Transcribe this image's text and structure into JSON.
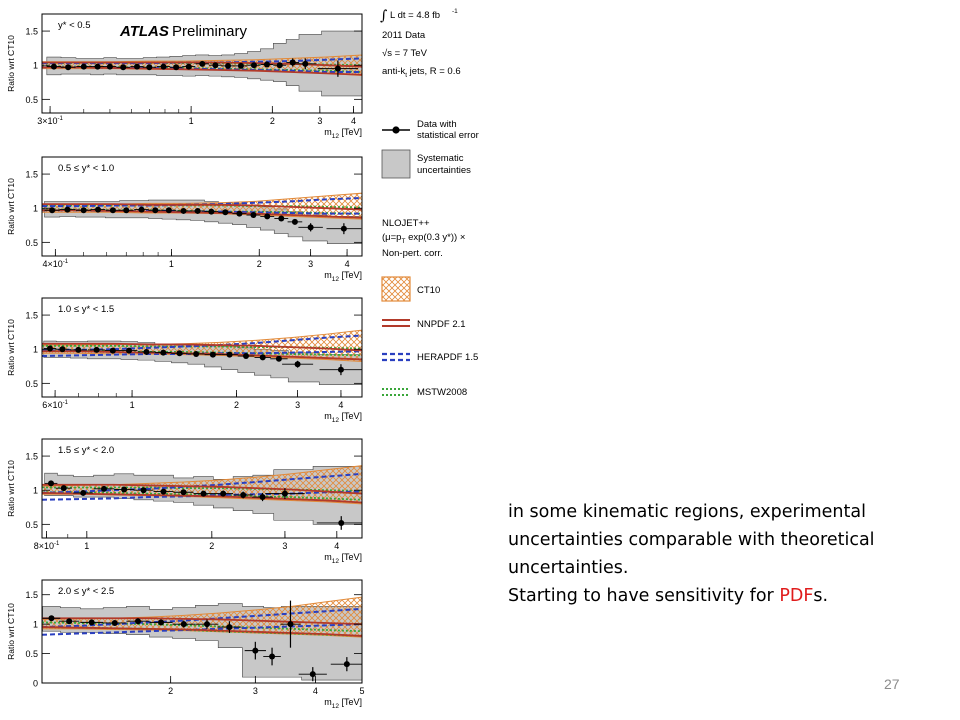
{
  "figure": {
    "watermark_text": "ATLAS",
    "watermark_sub": "Preliminary",
    "ylabel": "Ratio wrt CT10",
    "xlabel_main": "m",
    "xlabel_sub": "12",
    "xlabel_unit": "[TeV]"
  },
  "legend": {
    "lumi_int": "∫",
    "lumi_text": "L dt = 4.8 fb",
    "lumi_sup": "-1",
    "data_year": "2011 Data",
    "sqrt_s": "√s = 7 TeV",
    "jet_algo": "anti-k",
    "jet_algo_sub": "t",
    "jet_algo_rest": " jets, R = 0.6",
    "data_label_1": "Data with",
    "data_label_2": "statistical error",
    "syst_label_1": "Systematic",
    "syst_label_2": "uncertainties",
    "theory_1": "NLOJET++",
    "theory_2": "(μ=p",
    "theory_2_sub": "T",
    "theory_2_rest": " exp(0.3 y*)) ×",
    "theory_3": "Non-pert. corr.",
    "ct10": "CT10",
    "nnpdf": "NNPDF 2.1",
    "herapdf": "HERAPDF 1.5",
    "mstw": "MSTW2008",
    "colors": {
      "ct10": "#e28a3a",
      "nnpdf": "#b23a2a",
      "herapdf": "#2a3fc0",
      "mstw": "#3aa63a",
      "syst": "#c8c8c8"
    }
  },
  "slide": {
    "line1": "in some kinematic regions, experimental",
    "line2": "uncertainties comparable with theoretical",
    "line3": "uncertainties.",
    "line4_pre": "Starting to have sensitivity for ",
    "line4_hl": "PDF",
    "line4_post": "s.",
    "page_number": "27"
  },
  "chart_data": [
    {
      "type": "line",
      "range_label": "y* < 0.5",
      "xscale": "log",
      "xlim": [
        0.28,
        4.3
      ],
      "ylim": [
        0.3,
        1.75
      ],
      "yticks": [
        0.5,
        1,
        1.5
      ],
      "xticks": [
        {
          "v": 0.3,
          "label": "3×10",
          "sup": "-1"
        },
        {
          "v": 1,
          "label": "1"
        },
        {
          "v": 2,
          "label": "2"
        },
        {
          "v": 3,
          "label": "3"
        },
        {
          "v": 4,
          "label": "4"
        }
      ],
      "data_x": [
        0.31,
        0.35,
        0.4,
        0.45,
        0.5,
        0.56,
        0.63,
        0.7,
        0.79,
        0.88,
        0.98,
        1.1,
        1.23,
        1.37,
        1.53,
        1.71,
        1.91,
        2.13,
        2.38,
        2.65,
        3.5
      ],
      "data_y": [
        0.98,
        0.97,
        0.98,
        0.98,
        0.98,
        0.97,
        0.98,
        0.97,
        0.98,
        0.97,
        0.98,
        1.02,
        1.0,
        0.99,
        0.99,
        1.0,
        1.01,
        1.0,
        1.04,
        1.02,
        0.95
      ],
      "data_err": [
        0.02,
        0.02,
        0.02,
        0.02,
        0.02,
        0.02,
        0.02,
        0.02,
        0.02,
        0.02,
        0.02,
        0.02,
        0.02,
        0.02,
        0.02,
        0.02,
        0.03,
        0.04,
        0.06,
        0.08,
        0.12
      ],
      "syst_lo": [
        0.86,
        0.87,
        0.87,
        0.86,
        0.87,
        0.86,
        0.86,
        0.86,
        0.85,
        0.85,
        0.84,
        0.85,
        0.84,
        0.83,
        0.82,
        0.8,
        0.78,
        0.76,
        0.7,
        0.62,
        0.55
      ],
      "syst_hi": [
        1.12,
        1.11,
        1.1,
        1.1,
        1.11,
        1.1,
        1.1,
        1.11,
        1.12,
        1.13,
        1.14,
        1.15,
        1.14,
        1.15,
        1.17,
        1.2,
        1.24,
        1.32,
        1.38,
        1.45,
        1.5
      ],
      "ct10_lo": [
        0.95,
        0.95,
        0.95,
        0.94,
        0.94,
        0.93,
        0.92,
        0.9,
        0.88,
        0.85
      ],
      "ct10_hi": [
        1.05,
        1.05,
        1.05,
        1.06,
        1.06,
        1.07,
        1.08,
        1.1,
        1.12,
        1.15
      ],
      "nnpdf_lo": [
        0.97,
        0.97,
        0.96,
        0.95,
        0.94,
        0.93,
        0.92,
        0.9,
        0.88,
        0.86
      ],
      "nnpdf_hi": [
        1.04,
        1.04,
        1.04,
        1.04,
        1.04,
        1.04,
        1.03,
        1.02,
        1.0,
        0.98
      ],
      "hera_lo": [
        0.97,
        0.97,
        0.96,
        0.96,
        0.95,
        0.94,
        0.93,
        0.92,
        0.9,
        0.9
      ],
      "hera_hi": [
        1.03,
        1.03,
        1.03,
        1.03,
        1.04,
        1.04,
        1.05,
        1.06,
        1.08,
        1.1
      ],
      "mstw_lo": [
        0.98,
        0.98,
        0.97,
        0.97,
        0.96,
        0.95,
        0.94,
        0.93,
        0.92,
        0.9
      ],
      "mstw_hi": [
        1.03,
        1.03,
        1.03,
        1.03,
        1.03,
        1.03,
        1.02,
        1.02,
        1.01,
        1.0
      ]
    },
    {
      "type": "line",
      "range_label": "0.5 ≤ y* < 1.0",
      "xscale": "log",
      "xlim": [
        0.36,
        4.5
      ],
      "ylim": [
        0.3,
        1.75
      ],
      "yticks": [
        0.5,
        1,
        1.5
      ],
      "xticks": [
        {
          "v": 0.4,
          "label": "4×10",
          "sup": "-1"
        },
        {
          "v": 1,
          "label": "1"
        },
        {
          "v": 2,
          "label": "2"
        },
        {
          "v": 3,
          "label": "3"
        },
        {
          "v": 4,
          "label": "4"
        }
      ],
      "data_x": [
        0.39,
        0.44,
        0.5,
        0.56,
        0.63,
        0.7,
        0.79,
        0.88,
        0.98,
        1.1,
        1.23,
        1.37,
        1.53,
        1.71,
        1.91,
        2.13,
        2.38,
        2.65,
        3.0,
        3.9
      ],
      "data_y": [
        0.97,
        0.98,
        0.97,
        0.98,
        0.97,
        0.97,
        0.98,
        0.97,
        0.97,
        0.96,
        0.96,
        0.95,
        0.94,
        0.92,
        0.9,
        0.88,
        0.85,
        0.8,
        0.72,
        0.7
      ],
      "data_err": [
        0.02,
        0.02,
        0.02,
        0.02,
        0.02,
        0.02,
        0.02,
        0.02,
        0.02,
        0.02,
        0.02,
        0.02,
        0.02,
        0.02,
        0.02,
        0.03,
        0.03,
        0.04,
        0.06,
        0.08
      ],
      "syst_lo": [
        0.87,
        0.88,
        0.87,
        0.87,
        0.86,
        0.86,
        0.86,
        0.85,
        0.84,
        0.83,
        0.82,
        0.8,
        0.78,
        0.76,
        0.72,
        0.68,
        0.63,
        0.58,
        0.52,
        0.48
      ],
      "syst_hi": [
        1.1,
        1.1,
        1.1,
        1.1,
        1.1,
        1.11,
        1.11,
        1.12,
        1.12,
        1.12,
        1.12,
        1.1,
        1.08,
        1.07,
        1.05,
        1.02,
        0.99,
        0.95,
        0.9,
        0.88
      ],
      "ct10_lo": [
        0.94,
        0.94,
        0.94,
        0.93,
        0.93,
        0.92,
        0.9,
        0.88,
        0.86,
        0.84
      ],
      "ct10_hi": [
        1.06,
        1.06,
        1.06,
        1.07,
        1.07,
        1.08,
        1.1,
        1.14,
        1.18,
        1.22
      ],
      "nnpdf_lo": [
        0.97,
        0.97,
        0.96,
        0.95,
        0.94,
        0.93,
        0.92,
        0.9,
        0.88,
        0.86
      ],
      "nnpdf_hi": [
        1.06,
        1.06,
        1.06,
        1.05,
        1.05,
        1.05,
        1.04,
        1.02,
        1.0,
        0.98
      ],
      "hera_lo": [
        0.97,
        0.97,
        0.96,
        0.96,
        0.95,
        0.95,
        0.94,
        0.93,
        0.92,
        0.92
      ],
      "hera_hi": [
        1.03,
        1.03,
        1.04,
        1.04,
        1.05,
        1.06,
        1.08,
        1.1,
        1.13,
        1.15
      ],
      "mstw_lo": [
        0.98,
        0.98,
        0.97,
        0.97,
        0.96,
        0.95,
        0.95,
        0.94,
        0.93,
        0.92
      ],
      "mstw_hi": [
        1.04,
        1.04,
        1.04,
        1.04,
        1.04,
        1.04,
        1.03,
        1.03,
        1.02,
        1.01
      ]
    },
    {
      "type": "line",
      "range_label": "1.0 ≤ y* < 1.5",
      "xscale": "log",
      "xlim": [
        0.55,
        4.6
      ],
      "ylim": [
        0.3,
        1.75
      ],
      "yticks": [
        0.5,
        1,
        1.5
      ],
      "xticks": [
        {
          "v": 0.6,
          "label": "6×10",
          "sup": "-1"
        },
        {
          "v": 1,
          "label": "1"
        },
        {
          "v": 2,
          "label": "2"
        },
        {
          "v": 3,
          "label": "3"
        },
        {
          "v": 4,
          "label": "4"
        }
      ],
      "data_x": [
        0.58,
        0.63,
        0.7,
        0.79,
        0.88,
        0.98,
        1.1,
        1.23,
        1.37,
        1.53,
        1.71,
        1.91,
        2.13,
        2.38,
        2.65,
        3.0,
        4.0
      ],
      "data_y": [
        1.01,
        1.0,
        0.99,
        0.99,
        0.98,
        0.98,
        0.96,
        0.95,
        0.94,
        0.93,
        0.92,
        0.92,
        0.9,
        0.88,
        0.86,
        0.78,
        0.7
      ],
      "data_err": [
        0.02,
        0.02,
        0.02,
        0.02,
        0.02,
        0.02,
        0.02,
        0.02,
        0.02,
        0.02,
        0.02,
        0.02,
        0.02,
        0.03,
        0.04,
        0.05,
        0.08
      ],
      "syst_lo": [
        0.88,
        0.88,
        0.87,
        0.86,
        0.86,
        0.85,
        0.84,
        0.82,
        0.8,
        0.78,
        0.74,
        0.7,
        0.66,
        0.62,
        0.58,
        0.52,
        0.48
      ],
      "syst_hi": [
        1.12,
        1.11,
        1.11,
        1.12,
        1.12,
        1.11,
        1.1,
        1.08,
        1.08,
        1.06,
        1.05,
        1.04,
        1.02,
        1.0,
        0.98,
        0.95,
        0.92
      ],
      "ct10_lo": [
        0.94,
        0.94,
        0.93,
        0.93,
        0.92,
        0.91,
        0.89,
        0.87,
        0.85,
        0.82
      ],
      "ct10_hi": [
        1.06,
        1.06,
        1.07,
        1.07,
        1.08,
        1.1,
        1.13,
        1.17,
        1.22,
        1.28
      ],
      "nnpdf_lo": [
        0.97,
        0.97,
        0.96,
        0.95,
        0.94,
        0.93,
        0.91,
        0.89,
        0.87,
        0.85
      ],
      "nnpdf_hi": [
        1.08,
        1.08,
        1.08,
        1.07,
        1.07,
        1.06,
        1.05,
        1.03,
        1.01,
        0.98
      ],
      "hera_lo": [
        0.9,
        0.91,
        0.92,
        0.93,
        0.93,
        0.94,
        0.94,
        0.95,
        0.96,
        0.97
      ],
      "hera_hi": [
        0.98,
        0.99,
        1.0,
        1.02,
        1.04,
        1.06,
        1.09,
        1.13,
        1.17,
        1.2
      ],
      "mstw_lo": [
        0.98,
        0.98,
        0.97,
        0.96,
        0.96,
        0.95,
        0.94,
        0.93,
        0.92,
        0.91
      ],
      "mstw_hi": [
        1.05,
        1.05,
        1.05,
        1.04,
        1.04,
        1.04,
        1.03,
        1.03,
        1.02,
        1.01
      ]
    },
    {
      "type": "line",
      "range_label": "1.5 ≤ y* < 2.0",
      "xscale": "log",
      "xlim": [
        0.78,
        4.6
      ],
      "ylim": [
        0.3,
        1.75
      ],
      "yticks": [
        0.5,
        1,
        1.5
      ],
      "xticks": [
        {
          "v": 0.8,
          "label": "8×10",
          "sup": "-1"
        },
        {
          "v": 1,
          "label": "1"
        },
        {
          "v": 2,
          "label": "2"
        },
        {
          "v": 3,
          "label": "3"
        },
        {
          "v": 4,
          "label": "4"
        }
      ],
      "data_x": [
        0.82,
        0.88,
        0.98,
        1.1,
        1.23,
        1.37,
        1.53,
        1.71,
        1.91,
        2.13,
        2.38,
        2.65,
        3.0,
        4.1
      ],
      "data_y": [
        1.1,
        1.03,
        0.96,
        1.02,
        1.01,
        1.0,
        0.98,
        0.97,
        0.95,
        0.95,
        0.93,
        0.9,
        0.95,
        0.52
      ],
      "data_err": [
        0.03,
        0.03,
        0.03,
        0.03,
        0.03,
        0.03,
        0.03,
        0.03,
        0.03,
        0.04,
        0.05,
        0.06,
        0.08,
        0.1
      ],
      "syst_lo": [
        0.92,
        0.92,
        0.9,
        0.9,
        0.88,
        0.86,
        0.84,
        0.82,
        0.78,
        0.74,
        0.7,
        0.66,
        0.56,
        0.5
      ],
      "syst_hi": [
        1.25,
        1.22,
        1.2,
        1.22,
        1.24,
        1.22,
        1.22,
        1.18,
        1.2,
        1.16,
        1.2,
        1.22,
        1.3,
        1.35
      ],
      "ct10_lo": [
        0.94,
        0.94,
        0.93,
        0.92,
        0.91,
        0.89,
        0.87,
        0.85,
        0.83,
        0.8
      ],
      "ct10_hi": [
        1.06,
        1.07,
        1.08,
        1.1,
        1.12,
        1.15,
        1.19,
        1.24,
        1.3,
        1.36
      ],
      "nnpdf_lo": [
        0.96,
        0.95,
        0.94,
        0.93,
        0.92,
        0.91,
        0.89,
        0.87,
        0.85,
        0.82
      ],
      "nnpdf_hi": [
        1.08,
        1.08,
        1.08,
        1.07,
        1.06,
        1.05,
        1.03,
        1.01,
        0.98,
        0.95
      ],
      "hera_lo": [
        0.86,
        0.87,
        0.88,
        0.9,
        0.91,
        0.93,
        0.94,
        0.95,
        0.97,
        0.98
      ],
      "hera_hi": [
        0.96,
        0.98,
        1.0,
        1.02,
        1.05,
        1.08,
        1.12,
        1.16,
        1.2,
        1.24
      ],
      "mstw_lo": [
        0.97,
        0.97,
        0.96,
        0.95,
        0.94,
        0.93,
        0.91,
        0.9,
        0.88,
        0.86
      ],
      "mstw_hi": [
        1.04,
        1.04,
        1.04,
        1.04,
        1.03,
        1.03,
        1.02,
        1.01,
        1.0,
        0.99
      ]
    },
    {
      "type": "line",
      "range_label": "2.0 ≤ y* < 2.5",
      "xscale": "log",
      "xlim": [
        1.08,
        5.0
      ],
      "ylim": [
        0.0,
        1.75
      ],
      "yticks": [
        0,
        0.5,
        1,
        1.5
      ],
      "xticks": [
        {
          "v": 2,
          "label": "2"
        },
        {
          "v": 3,
          "label": "3"
        },
        {
          "v": 4,
          "label": "4"
        },
        {
          "v": 5,
          "label": "5"
        }
      ],
      "data_x": [
        1.13,
        1.23,
        1.37,
        1.53,
        1.71,
        1.91,
        2.13,
        2.38,
        2.65,
        3.0,
        3.25,
        3.55,
        3.95,
        4.65
      ],
      "data_y": [
        1.1,
        1.05,
        1.03,
        1.02,
        1.05,
        1.03,
        1.0,
        1.0,
        0.95,
        0.55,
        0.45,
        1.0,
        0.15,
        0.32
      ],
      "data_err": [
        0.04,
        0.04,
        0.04,
        0.04,
        0.05,
        0.05,
        0.06,
        0.08,
        0.1,
        0.15,
        0.15,
        0.4,
        0.12,
        0.12
      ],
      "syst_lo": [
        0.88,
        0.86,
        0.86,
        0.84,
        0.82,
        0.78,
        0.76,
        0.72,
        0.6,
        0.1,
        0.1,
        0.1,
        0.05,
        0.05
      ],
      "syst_hi": [
        1.3,
        1.28,
        1.26,
        1.28,
        1.3,
        1.25,
        1.28,
        1.32,
        1.35,
        1.3,
        1.28,
        1.3,
        1.3,
        1.3
      ],
      "ct10_lo": [
        0.92,
        0.92,
        0.91,
        0.9,
        0.89,
        0.87,
        0.85,
        0.83,
        0.81,
        0.78
      ],
      "ct10_hi": [
        1.08,
        1.09,
        1.1,
        1.12,
        1.15,
        1.19,
        1.24,
        1.3,
        1.38,
        1.46
      ],
      "nnpdf_lo": [
        0.95,
        0.94,
        0.93,
        0.92,
        0.91,
        0.89,
        0.87,
        0.85,
        0.83,
        0.8
      ],
      "nnpdf_hi": [
        1.1,
        1.1,
        1.1,
        1.1,
        1.09,
        1.08,
        1.06,
        1.04,
        1.02,
        1.0
      ],
      "hera_lo": [
        0.82,
        0.84,
        0.86,
        0.88,
        0.9,
        0.92,
        0.94,
        0.96,
        0.98,
        1.0
      ],
      "hera_hi": [
        0.95,
        0.97,
        1.0,
        1.03,
        1.06,
        1.1,
        1.14,
        1.18,
        1.22,
        1.26
      ],
      "mstw_lo": [
        0.95,
        0.94,
        0.93,
        0.92,
        0.9,
        0.88,
        0.86,
        0.84,
        0.82,
        0.8
      ],
      "mstw_hi": [
        1.03,
        1.02,
        1.01,
        1.0,
        0.98,
        0.96,
        0.94,
        0.92,
        0.9,
        0.88
      ]
    }
  ]
}
